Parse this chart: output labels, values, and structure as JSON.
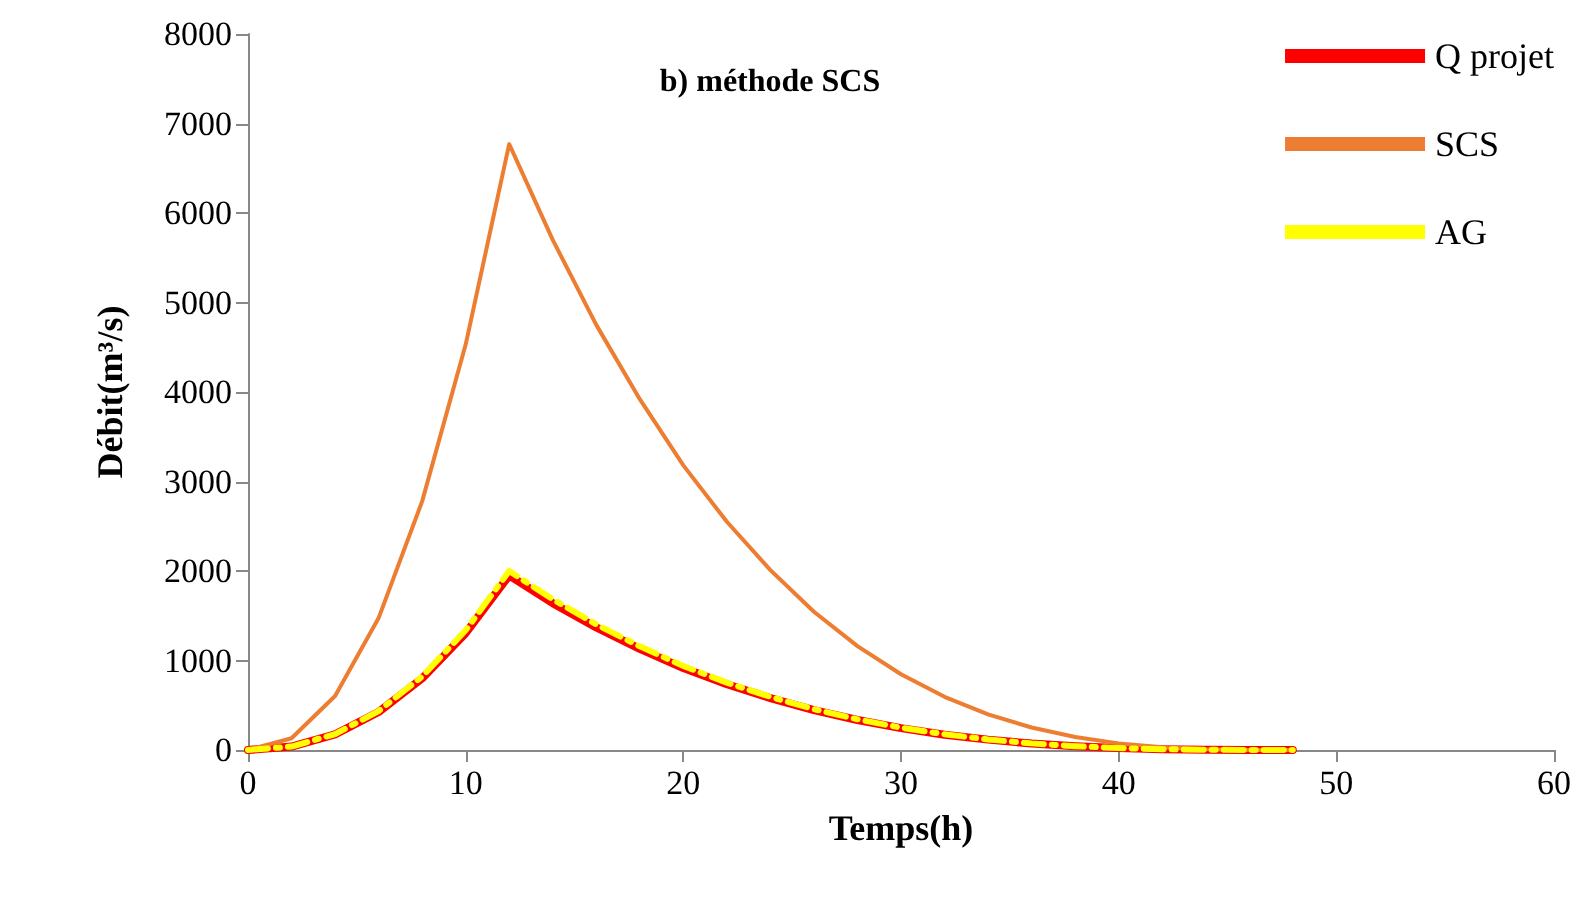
{
  "chart_data": {
    "type": "line",
    "title": "b) méthode SCS",
    "xlabel": "Temps(h)",
    "ylabel": "Débit(m³/s)",
    "x": [
      0,
      2,
      4,
      6,
      8,
      10,
      12,
      14,
      16,
      18,
      20,
      22,
      24,
      26,
      28,
      30,
      32,
      34,
      36,
      38,
      40,
      42,
      44,
      46,
      48
    ],
    "series": [
      {
        "name": "Q projet",
        "color": "#ff0000",
        "line_style": "solid",
        "values": [
          0,
          38,
          174,
          425,
          800,
          1305,
          1950,
          1640,
          1370,
          1130,
          915,
          735,
          580,
          445,
          335,
          244,
          171,
          116,
          72,
          42,
          21,
          9,
          3,
          0,
          0
        ]
      },
      {
        "name": "SCS",
        "color": "#ed7d31",
        "line_style": "solid",
        "values": [
          0,
          131,
          603,
          1474,
          2778,
          4530,
          6770,
          5700,
          4750,
          3920,
          3180,
          2550,
          2010,
          1545,
          1160,
          846,
          594,
          398,
          251,
          145,
          74,
          31,
          9,
          1,
          0
        ]
      },
      {
        "name": "AG",
        "color": "#ffff00",
        "line_style": "dashed",
        "values": [
          0,
          39,
          178,
          435,
          821,
          1338,
          2000,
          1684,
          1403,
          1158,
          939,
          753,
          594,
          456,
          343,
          250,
          175,
          118,
          74,
          43,
          22,
          9,
          3,
          0,
          0
        ]
      }
    ],
    "xlim": [
      0,
      60
    ],
    "xticks": [
      0,
      10,
      20,
      30,
      40,
      50,
      60
    ],
    "ylim": [
      0,
      8000
    ],
    "yticks": [
      0,
      1000,
      2000,
      3000,
      4000,
      5000,
      6000,
      7000,
      8000
    ],
    "grid": false,
    "legend": "top right",
    "marker": "none"
  }
}
